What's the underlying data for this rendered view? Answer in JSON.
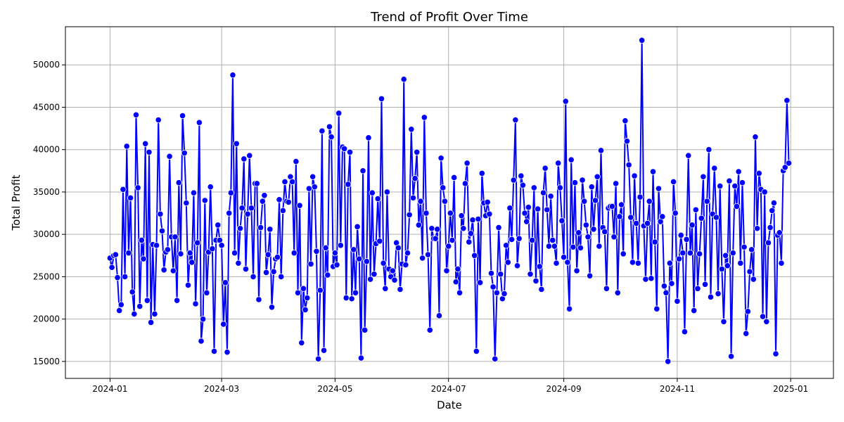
{
  "chart_data": {
    "type": "line",
    "title": "Trend of Profit Over Time",
    "xlabel": "Date",
    "ylabel": "Total Profit",
    "x_start": "2024-01-01",
    "x_end": "2024-12-31",
    "x_ticks": [
      "2024-01",
      "2024-03",
      "2024-05",
      "2024-07",
      "2024-09",
      "2024-11",
      "2025-01"
    ],
    "y_ticks": [
      "15000",
      "20000",
      "25000",
      "30000",
      "35000",
      "40000",
      "45000",
      "50000"
    ],
    "ylim": [
      13000,
      54500
    ],
    "grid": true,
    "colors": {
      "line": "#0000ff",
      "marker_edge": "#ffffff"
    },
    "series": [
      {
        "values": [
          27200,
          26100,
          27500,
          27600,
          24900,
          21000,
          21700,
          35300,
          25000,
          40400,
          27800,
          34300,
          23200,
          20600,
          44100,
          35500,
          21500,
          29300,
          27100,
          40700,
          22200,
          39700,
          19600,
          28800,
          20600,
          28700,
          43500,
          32400,
          30400,
          25800,
          27900,
          28200,
          39200,
          29700,
          25700,
          29700,
          22200,
          36100,
          27700,
          44000,
          39600,
          33700,
          24000,
          27800,
          26700,
          34900,
          21800,
          29000,
          43200,
          17400,
          20000,
          34000,
          23100,
          27900,
          35600,
          28300,
          16200,
          29300,
          31100,
          29300,
          28700,
          19400,
          24300,
          16100,
          32500,
          34900,
          48800,
          27800,
          40700,
          26600,
          30700,
          33100,
          38900,
          25900,
          32400,
          39300,
          33100,
          25000,
          36000,
          36000,
          22300,
          30800,
          33900,
          34600,
          25500,
          27600,
          30600,
          21400,
          25600,
          27100,
          27300,
          34100,
          25000,
          32800,
          36200,
          33900,
          33800,
          36800,
          36200,
          27800,
          38600,
          23100,
          33400,
          17200,
          23600,
          21100,
          22500,
          35400,
          26500,
          36800,
          35600,
          28000,
          15300,
          23400,
          42200,
          16300,
          28400,
          25200,
          42700,
          41500,
          26200,
          27800,
          26400,
          44300,
          28700,
          40300,
          40100,
          22500,
          35900,
          39700,
          22400,
          28200,
          23100,
          30900,
          27100,
          15400,
          37500,
          18700,
          26800,
          41400,
          24700,
          34900,
          25300,
          28900,
          34200,
          29200,
          46000,
          26600,
          23600,
          35000,
          25900,
          25000,
          25700,
          24600,
          29000,
          28400,
          23500,
          26500,
          48300,
          26400,
          27800,
          32300,
          42400,
          34300,
          36600,
          39700,
          31100,
          33900,
          27200,
          43800,
          32500,
          27600,
          18700,
          30700,
          29500,
          29500,
          30600,
          20400,
          39000,
          35500,
          33900,
          25700,
          28600,
          32500,
          29300,
          36700,
          24400,
          25900,
          23100,
          32200,
          30700,
          36000,
          38400,
          29100,
          30100,
          31700,
          27500,
          16200,
          31800,
          24300,
          37200,
          33700,
          32200,
          33800,
          32400,
          25400,
          23800,
          15300,
          23100,
          30800,
          25300,
          22400,
          23000,
          28700,
          26700,
          33100,
          29400,
          36400,
          43500,
          26300,
          29500,
          36900,
          35800,
          32500,
          31500,
          33200,
          25300,
          29300,
          35500,
          24500,
          33000,
          26200,
          23500,
          34900,
          37800,
          32900,
          28600,
          34500,
          29300,
          28600,
          26600,
          38400,
          35500,
          31600,
          27300,
          45700,
          26700,
          21200,
          38800,
          28500,
          36100,
          25700,
          30200,
          28400,
          36400,
          33900,
          31100,
          29700,
          25100,
          35600,
          30600,
          34000,
          36800,
          28600,
          39900,
          30800,
          30300,
          23600,
          33100,
          33300,
          33300,
          29700,
          36000,
          23100,
          32100,
          33500,
          27700,
          43400,
          41000,
          38200,
          32000,
          26700,
          36900,
          31300,
          26600,
          34400,
          52900,
          31000,
          24700,
          31300,
          33900,
          24800,
          37400,
          29100,
          21200,
          35400,
          31500,
          32100,
          23900,
          23100,
          15000,
          26600,
          24200,
          36200,
          32500,
          22100,
          27100,
          29900,
          27800,
          18500,
          29400,
          39300,
          27800,
          31100,
          21000,
          32900,
          23600,
          27700,
          31900,
          36800,
          24100,
          33900,
          40000,
          22600,
          32400,
          37800,
          32000,
          23000,
          35700,
          25900,
          19700,
          27500,
          26300,
          36300,
          15600,
          27800,
          35700,
          33300,
          37400,
          26600,
          36100,
          28500,
          18300,
          20900,
          25600,
          28200,
          24700,
          41500,
          30700,
          37200,
          35300,
          20300,
          35000,
          19700,
          29000,
          30800,
          32800,
          33700,
          15900,
          29900,
          30200,
          26600,
          37500,
          37900,
          45800,
          38400
        ]
      }
    ]
  }
}
